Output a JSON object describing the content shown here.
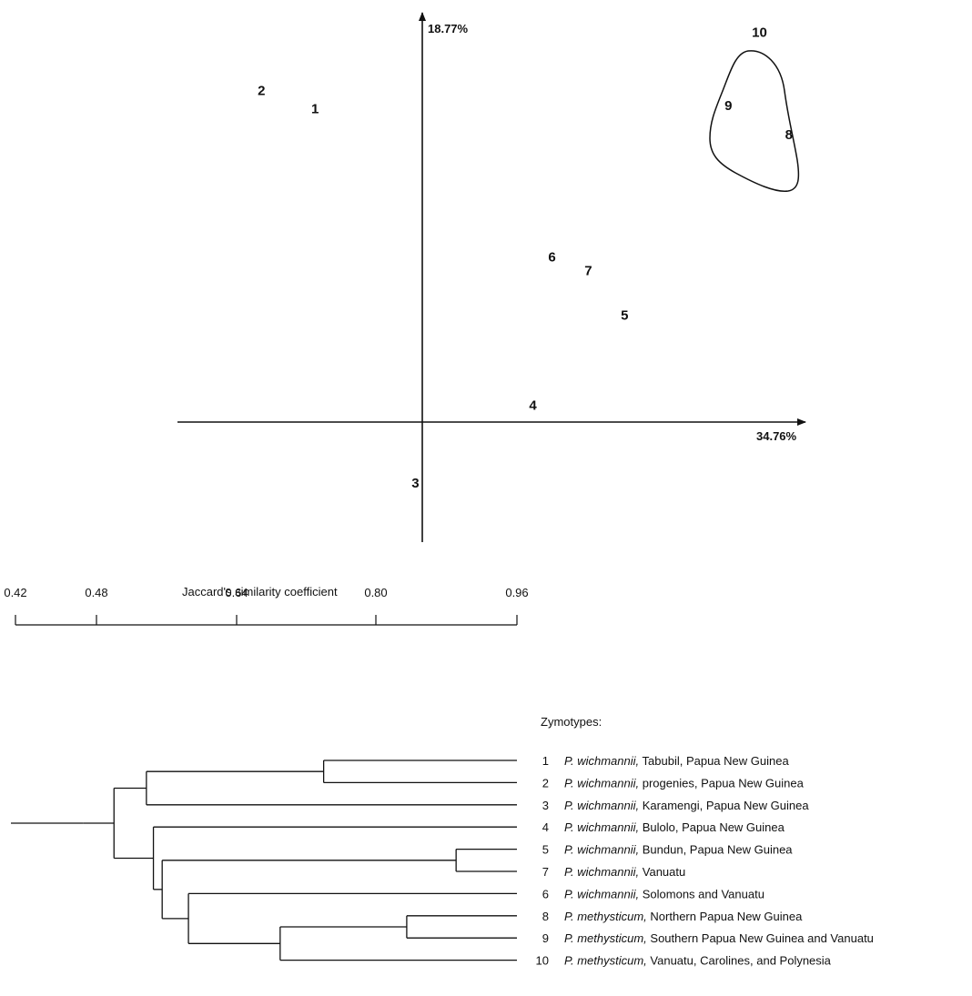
{
  "chart_data": [
    {
      "type": "scatter",
      "axis_labels": {
        "x": "34.76%",
        "y": "18.77%"
      },
      "xlim": [
        -1.45,
        2.3
      ],
      "ylim": [
        -0.8,
        2.9
      ],
      "points": [
        {
          "label": "1",
          "x": -0.62,
          "y": 2.05
        },
        {
          "label": "2",
          "x": -0.93,
          "y": 2.17
        },
        {
          "label": "3",
          "x": -0.04,
          "y": -0.4
        },
        {
          "label": "4",
          "x": 0.64,
          "y": 0.11
        },
        {
          "label": "5",
          "x": 1.17,
          "y": 0.7
        },
        {
          "label": "6",
          "x": 0.75,
          "y": 1.08
        },
        {
          "label": "7",
          "x": 0.96,
          "y": 0.99
        },
        {
          "label": "8",
          "x": 2.12,
          "y": 1.88
        },
        {
          "label": "9",
          "x": 1.77,
          "y": 2.07
        },
        {
          "label": "10",
          "x": 1.95,
          "y": 2.55
        }
      ],
      "enclosed_group": [
        "8",
        "9",
        "10"
      ]
    },
    {
      "type": "dendrogram",
      "scale_title": "Jaccard's similarity coefficient",
      "scale_ticks": [
        "0.42",
        "0.48",
        "0.64",
        "0.80",
        "0.96"
      ],
      "scale_tick_values": [
        0.42,
        0.48,
        0.64,
        0.8,
        0.96
      ],
      "legend_title": "Zymotypes:",
      "leaves": [
        {
          "num": "1",
          "species": "P. wichmannii,",
          "locality": " Tabubil, Papua New Guinea"
        },
        {
          "num": "2",
          "species": "P. wichmannii,",
          "locality": " progenies, Papua New Guinea"
        },
        {
          "num": "3",
          "species": "P. wichmannii,",
          "locality": " Karamengi, Papua New Guinea"
        },
        {
          "num": "4",
          "species": "P. wichmannii,",
          "locality": " Bulolo, Papua New Guinea"
        },
        {
          "num": "5",
          "species": "P. wichmannii,",
          "locality": " Bundun, Papua New Guinea"
        },
        {
          "num": "7",
          "species": "P. wichmannii,",
          "locality": " Vanuatu"
        },
        {
          "num": "6",
          "species": "P. wichmannii,",
          "locality": " Solomons and Vanuatu"
        },
        {
          "num": "8",
          "species": "P. methysticum,",
          "locality": " Northern Papua New Guinea"
        },
        {
          "num": "9",
          "species": "P. methysticum,",
          "locality": " Southern Papua New Guinea and Vanuatu"
        },
        {
          "num": "10",
          "species": "P. methysticum,",
          "locality": " Vanuatu, Carolines, and Polynesia"
        }
      ],
      "merges": [
        {
          "a": "L0",
          "b": "L1",
          "similarity": 0.74
        },
        {
          "a": "L7",
          "b": "L8",
          "similarity": 0.835
        },
        {
          "a": "L4",
          "b": "L5",
          "similarity": 0.891
        },
        {
          "a": "M1",
          "b": "L9",
          "similarity": 0.69
        },
        {
          "a": "L6",
          "b": "M3",
          "similarity": 0.585
        },
        {
          "a": "M2",
          "b": "M4",
          "similarity": 0.555
        },
        {
          "a": "L3",
          "b": "M5",
          "similarity": 0.545
        },
        {
          "a": "M0",
          "b": "L2",
          "similarity": 0.537
        },
        {
          "a": "M7",
          "b": "M6",
          "similarity": 0.5
        },
        {
          "a": "M8",
          "b": "root",
          "similarity": 0.47
        }
      ]
    }
  ]
}
